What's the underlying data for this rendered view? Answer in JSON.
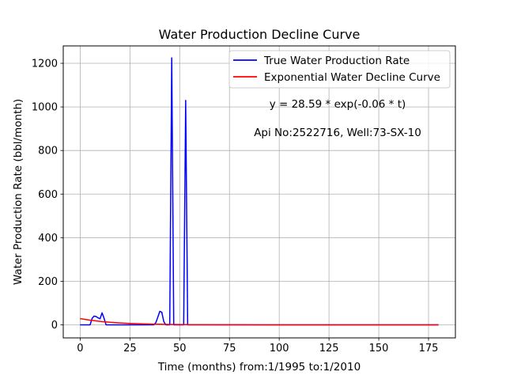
{
  "chart_data": {
    "type": "line",
    "title": "Water Production Decline Curve",
    "xlabel": "Time (months) from:1/1995 to:1/2010",
    "ylabel": "Water Production Rate (bbl/month)",
    "xlim": [
      -8.5,
      188.5
    ],
    "ylim": [
      -60,
      1280
    ],
    "xticks": [
      0,
      25,
      50,
      75,
      100,
      125,
      150,
      175
    ],
    "yticks": [
      0,
      200,
      400,
      600,
      800,
      1000,
      1200
    ],
    "grid": true,
    "legend_position": "top-right",
    "series": [
      {
        "name": "True Water Production Rate",
        "color": "#0000ff",
        "x": [
          0,
          1,
          2,
          3,
          4,
          5,
          6,
          7,
          8,
          9,
          10,
          11,
          12,
          13,
          14,
          15,
          20,
          25,
          30,
          35,
          37,
          38,
          39,
          40,
          41,
          42,
          43,
          44,
          45,
          46,
          47,
          48,
          49,
          50,
          51,
          52,
          53,
          54,
          55,
          60,
          70,
          80,
          90,
          100,
          110,
          120,
          130,
          140,
          150,
          160,
          170,
          180
        ],
        "y": [
          0,
          0,
          0,
          0,
          0,
          0,
          30,
          40,
          38,
          32,
          28,
          55,
          30,
          0,
          0,
          0,
          0,
          0,
          0,
          0,
          0,
          10,
          35,
          62,
          58,
          15,
          0,
          0,
          0,
          1225,
          0,
          0,
          0,
          0,
          0,
          0,
          1030,
          0,
          0,
          0,
          0,
          0,
          0,
          0,
          0,
          0,
          0,
          0,
          0,
          0,
          0,
          0
        ]
      },
      {
        "name": "Exponential Water Decline Curve",
        "color": "#ff0000",
        "x": [
          0,
          5,
          10,
          15,
          20,
          25,
          30,
          35,
          40,
          45,
          50,
          55,
          60,
          70,
          80,
          90,
          100,
          120,
          140,
          160,
          180
        ],
        "y": [
          28.59,
          21.18,
          15.69,
          11.62,
          8.61,
          6.38,
          4.72,
          3.5,
          2.59,
          1.92,
          1.42,
          1.05,
          0.78,
          0.43,
          0.24,
          0.13,
          0.07,
          0.02,
          0.01,
          0.0,
          0.0
        ]
      }
    ],
    "annotations": [
      "y = 28.59 * exp(-0.06 * t)",
      "Api No:2522716, Well:73-SX-10"
    ]
  }
}
